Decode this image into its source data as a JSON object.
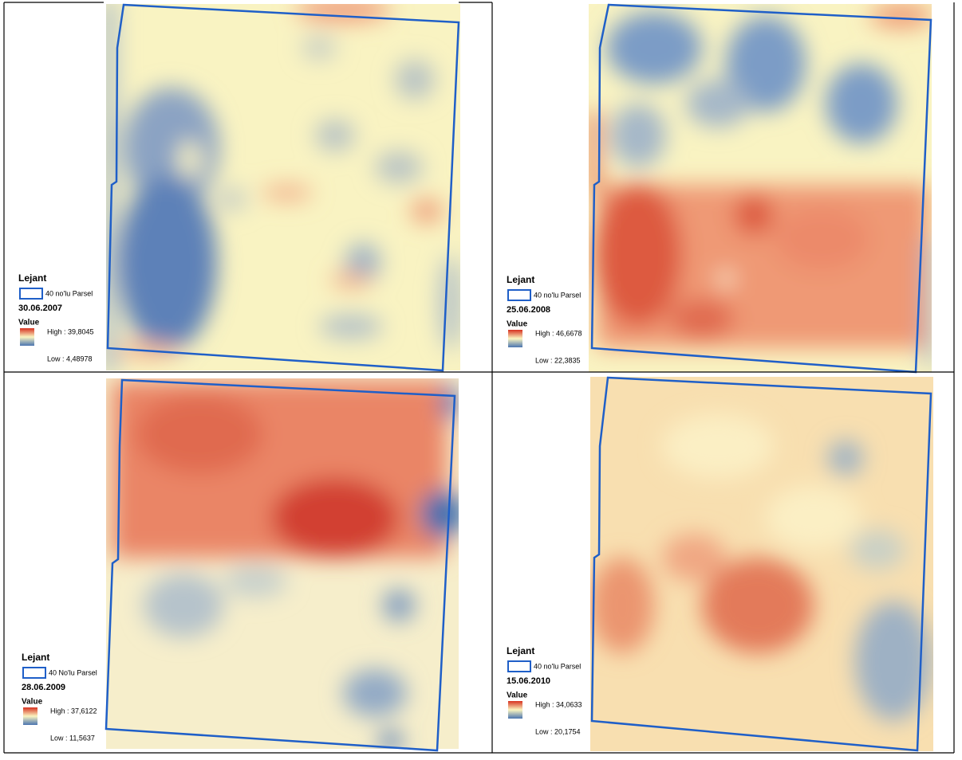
{
  "panels": [
    {
      "legend_title": "Lejant",
      "layer": "40 no'lu Parsel",
      "date": "30.06.2007",
      "value_title": "Value",
      "high": "High : 39,8045",
      "low": "Low : 4,48978"
    },
    {
      "legend_title": "Lejant",
      "layer": "40 no'lu Parsel",
      "date": "25.06.2008",
      "value_title": "Value",
      "high": "High : 46,6678",
      "low": "Low : 22,3835"
    },
    {
      "legend_title": "Lejant",
      "layer": "40 No'lu Parsel",
      "date": "28.06.2009",
      "value_title": "Value",
      "high": "High : 37,6122",
      "low": "Low : 11,5637"
    },
    {
      "legend_title": "Lejant",
      "layer": "40 no'lu Parsel",
      "date": "15.06.2010",
      "value_title": "Value",
      "high": "High : 34,0633",
      "low": "Low : 20,1754"
    }
  ]
}
